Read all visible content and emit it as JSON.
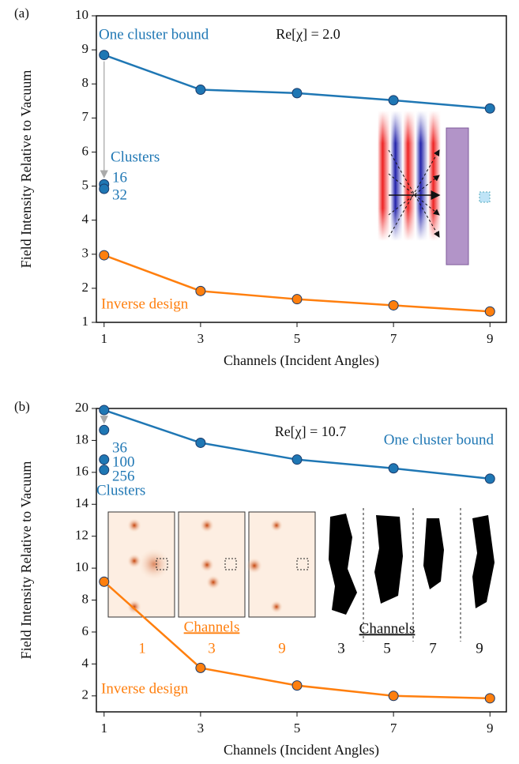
{
  "chart_data": [
    {
      "type": "line",
      "panel": "(a)",
      "annotation": "Re[χ] = 2.0",
      "x": [
        1,
        3,
        5,
        7,
        9
      ],
      "xlim": [
        0.84,
        9.34
      ],
      "xticks": [
        1,
        3,
        5,
        7,
        9
      ],
      "ylim": [
        1,
        10
      ],
      "yticks": [
        1,
        2,
        3,
        4,
        5,
        6,
        7,
        8,
        9,
        10
      ],
      "xlabel": "Channels (Incident Angles)",
      "ylabel": "Field Intensity Relative to Vacuum",
      "series": [
        {
          "name": "One cluster bound",
          "color": "#1f77b4",
          "values": [
            8.85,
            7.83,
            7.73,
            7.52,
            7.28
          ]
        },
        {
          "name": "Inverse design",
          "color": "#ff7f0e",
          "values": [
            2.97,
            1.92,
            1.68,
            1.5,
            1.32
          ]
        }
      ],
      "clusters": {
        "label": "Clusters",
        "points": [
          {
            "label": "16",
            "value": 5.05
          },
          {
            "label": "32",
            "value": 4.92
          }
        ]
      }
    },
    {
      "type": "line",
      "panel": "(b)",
      "annotation": "Re[χ] = 10.7",
      "x": [
        1,
        3,
        5,
        7,
        9
      ],
      "xlim": [
        0.84,
        9.34
      ],
      "xticks": [
        1,
        3,
        5,
        7,
        9
      ],
      "ylim": [
        1,
        20
      ],
      "yticks": [
        2,
        4,
        6,
        8,
        10,
        12,
        14,
        16,
        18,
        20
      ],
      "xlabel": "Channels (Incident Angles)",
      "ylabel": "Field Intensity Relative to Vacuum",
      "series": [
        {
          "name": "One cluster bound",
          "color": "#1f77b4",
          "values": [
            19.9,
            17.85,
            16.8,
            16.25,
            15.6
          ]
        },
        {
          "name": "Inverse design",
          "color": "#ff7f0e",
          "values": [
            9.15,
            3.75,
            2.65,
            2.0,
            1.85
          ]
        }
      ],
      "clusters": {
        "label": "Clusters",
        "points": [
          {
            "label": "36",
            "value": 18.65
          },
          {
            "label": "100",
            "value": 16.8
          },
          {
            "label": "256",
            "value": 16.15
          }
        ]
      },
      "inset": {
        "orange_title": "Channels",
        "orange_labels": [
          "1",
          "3",
          "9"
        ],
        "black_title": "Channels",
        "black_labels": [
          "3",
          "5",
          "7",
          "9"
        ]
      }
    }
  ]
}
